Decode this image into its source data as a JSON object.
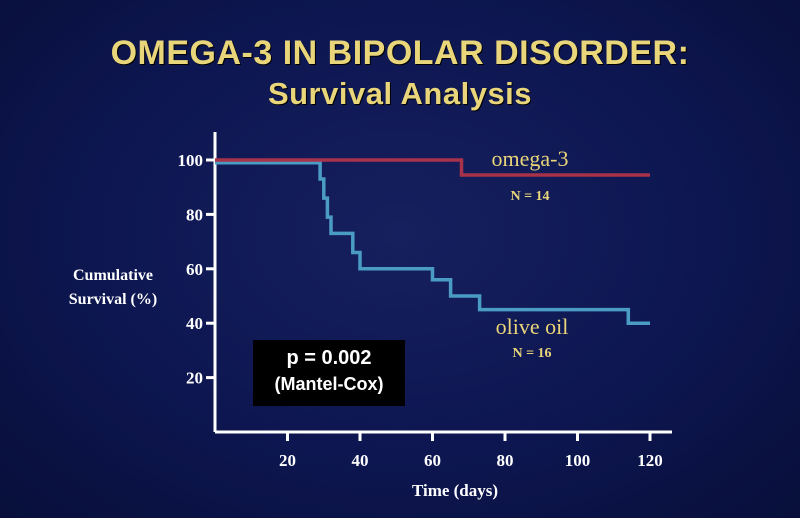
{
  "slide": {
    "title_line1": "OMEGA-3 IN BIPOLAR DISORDER:",
    "title_line2": "Survival Analysis"
  },
  "stat_box": {
    "p_value": "p = 0.002",
    "test": "(Mantel-Cox)"
  },
  "colors": {
    "background": "#0d1650",
    "title": "#e9d57a",
    "axis": "#ffffff",
    "omega3": "#a8324a",
    "olive_oil": "#4b9cc4",
    "label_text": "#e9d57a"
  },
  "chart_data": {
    "type": "line",
    "step": true,
    "xlabel": "Time (days)",
    "ylabel_line1": "Cumulative",
    "ylabel_line2": "Survival (%)",
    "xlim": [
      0,
      120
    ],
    "ylim": [
      0,
      100
    ],
    "xticks": [
      20,
      40,
      60,
      80,
      100,
      120
    ],
    "yticks": [
      20,
      40,
      60,
      80,
      100
    ],
    "grid": false,
    "series": [
      {
        "name": "omega-3",
        "n_label": "N = 14",
        "color": "#a8324a",
        "x": [
          0,
          68,
          68,
          120
        ],
        "y": [
          100,
          100,
          94.5,
          94.5
        ]
      },
      {
        "name": "olive oil",
        "n_label": "N = 16",
        "color": "#4b9cc4",
        "x": [
          0,
          29,
          29,
          30,
          30,
          31,
          31,
          32,
          32,
          38,
          38,
          40,
          40,
          60,
          60,
          65,
          65,
          73,
          73,
          114,
          114,
          120
        ],
        "y": [
          99,
          99,
          93,
          93,
          86,
          86,
          79,
          79,
          73,
          73,
          66,
          66,
          60,
          60,
          56,
          56,
          50,
          50,
          45,
          45,
          40,
          40
        ]
      }
    ]
  }
}
